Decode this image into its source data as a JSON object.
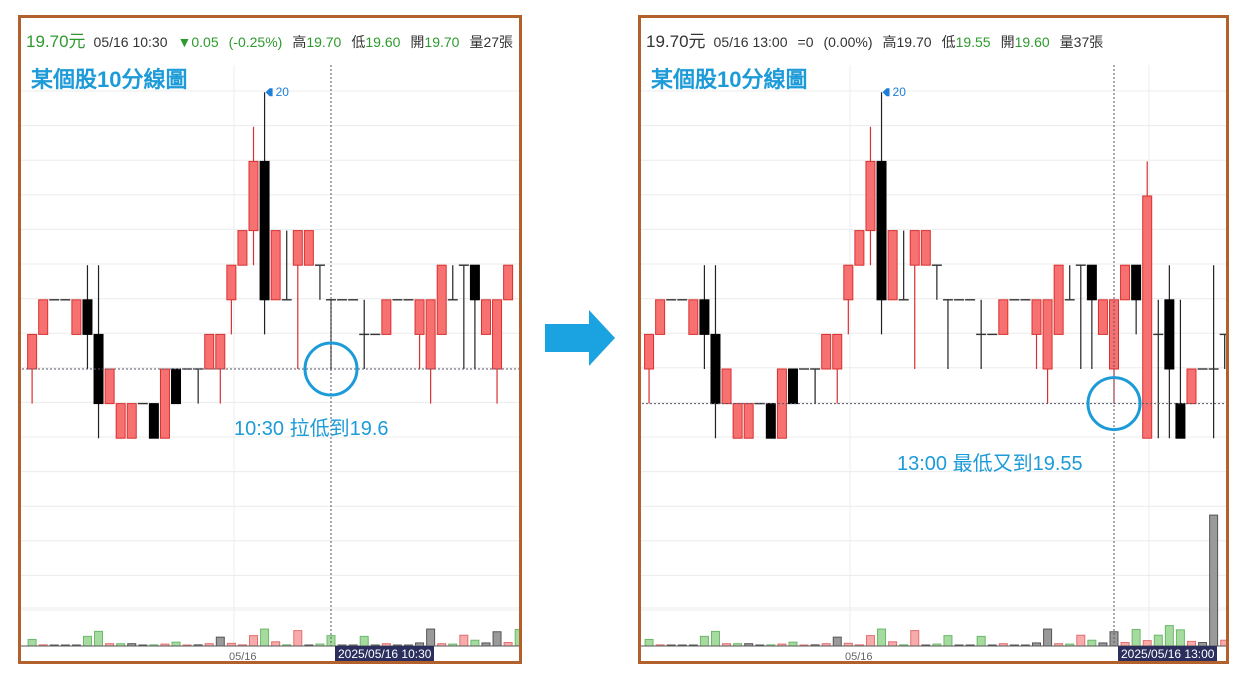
{
  "colors": {
    "up": "#f87171",
    "up_border": "#d93030",
    "down": "#000000",
    "wick": "#222222",
    "vol_green": "#a6dba0",
    "vol_red": "#f9aaaa",
    "vol_gray": "#9a9a9a",
    "accent": "#1d9bd8",
    "frame": "#b2602c",
    "arrow": "#1aa3e0"
  },
  "arrow_icon": "right-arrow",
  "panels": [
    {
      "header": {
        "price": "19.70元",
        "datetime": "05/16 10:30",
        "change": "▼0.05",
        "change_pct": "(-0.25%)",
        "high_label": "高",
        "high": "19.70",
        "low_label": "低",
        "low": "19.60",
        "open_label": "開",
        "open": "19.70",
        "volume": "量27張"
      },
      "title": "某個股10分線圖",
      "annotation": "10:30 拉低到19.6",
      "crosshair_label": "2025/05/16 10:30",
      "x_label": "05/16",
      "peak_label": "20",
      "crosshair_index": 27,
      "crosshair_price": 19.6
    },
    {
      "header": {
        "price": "19.70元",
        "datetime": "05/16 13:00",
        "change": "=0",
        "change_pct": "(0.00%)",
        "high_label": "高",
        "high": "19.70",
        "low_label": "低",
        "low": "19.55",
        "open_label": "開",
        "open": "19.60",
        "volume": "量37張"
      },
      "title": "某個股10分線圖",
      "annotation": "13:00 最低又到19.55",
      "crosshair_label": "2025/05/16 13:00",
      "x_label": "05/16",
      "peak_label": "20",
      "crosshair_index": 42,
      "crosshair_price": 19.55
    }
  ],
  "chart_data": {
    "type": "candlestick",
    "title": "某個股10分線圖",
    "ylim": [
      19.4,
      20.05
    ],
    "grid": true,
    "ohlc": [
      [
        19.6,
        19.65,
        19.55,
        19.65
      ],
      [
        19.65,
        19.7,
        19.65,
        19.7
      ],
      [
        19.7,
        19.7,
        19.7,
        19.7
      ],
      [
        19.7,
        19.7,
        19.7,
        19.7
      ],
      [
        19.65,
        19.7,
        19.65,
        19.7
      ],
      [
        19.7,
        19.75,
        19.6,
        19.65
      ],
      [
        19.65,
        19.75,
        19.5,
        19.55
      ],
      [
        19.55,
        19.6,
        19.55,
        19.6
      ],
      [
        19.5,
        19.55,
        19.5,
        19.55
      ],
      [
        19.5,
        19.55,
        19.5,
        19.55
      ],
      [
        19.55,
        19.55,
        19.55,
        19.55
      ],
      [
        19.55,
        19.55,
        19.5,
        19.5
      ],
      [
        19.5,
        19.6,
        19.5,
        19.6
      ],
      [
        19.6,
        19.6,
        19.55,
        19.55
      ],
      [
        19.6,
        19.6,
        19.6,
        19.6
      ],
      [
        19.6,
        19.6,
        19.55,
        19.6
      ],
      [
        19.6,
        19.65,
        19.6,
        19.65
      ],
      [
        19.6,
        19.65,
        19.55,
        19.65
      ],
      [
        19.7,
        19.75,
        19.65,
        19.75
      ],
      [
        19.75,
        19.8,
        19.75,
        19.8
      ],
      [
        19.8,
        19.95,
        19.75,
        19.9
      ],
      [
        19.9,
        20.0,
        19.65,
        19.7
      ],
      [
        19.7,
        19.8,
        19.7,
        19.8
      ],
      [
        19.7,
        19.8,
        19.7,
        19.7
      ],
      [
        19.75,
        19.8,
        19.6,
        19.8
      ],
      [
        19.75,
        19.8,
        19.75,
        19.8
      ],
      [
        19.75,
        19.75,
        19.7,
        19.75
      ],
      [
        19.7,
        19.7,
        19.6,
        19.7
      ],
      [
        19.7,
        19.7,
        19.7,
        19.7
      ],
      [
        19.7,
        19.7,
        19.7,
        19.7
      ],
      [
        19.65,
        19.7,
        19.6,
        19.65
      ],
      [
        19.65,
        19.65,
        19.65,
        19.65
      ],
      [
        19.65,
        19.7,
        19.65,
        19.7
      ],
      [
        19.7,
        19.7,
        19.7,
        19.7
      ],
      [
        19.7,
        19.7,
        19.7,
        19.7
      ],
      [
        19.65,
        19.7,
        19.6,
        19.7
      ],
      [
        19.6,
        19.7,
        19.55,
        19.7
      ],
      [
        19.65,
        19.75,
        19.65,
        19.75
      ],
      [
        19.7,
        19.75,
        19.7,
        19.7
      ],
      [
        19.75,
        19.75,
        19.6,
        19.75
      ],
      [
        19.75,
        19.75,
        19.6,
        19.7
      ],
      [
        19.65,
        19.7,
        19.65,
        19.7
      ],
      [
        19.6,
        19.7,
        19.55,
        19.7
      ],
      [
        19.7,
        19.75,
        19.7,
        19.75
      ],
      [
        19.75,
        19.75,
        19.65,
        19.7
      ],
      [
        19.5,
        19.9,
        19.5,
        19.85
      ],
      [
        19.65,
        19.7,
        19.5,
        19.65
      ],
      [
        19.7,
        19.75,
        19.5,
        19.6
      ],
      [
        19.55,
        19.7,
        19.5,
        19.5
      ],
      [
        19.55,
        19.6,
        19.55,
        19.6
      ],
      [
        19.6,
        19.6,
        19.6,
        19.6
      ],
      [
        19.6,
        19.75,
        19.5,
        19.6
      ],
      [
        19.65,
        19.65,
        19.6,
        19.65
      ]
    ],
    "volume": [
      17,
      3,
      0,
      0,
      2,
      25,
      38,
      6,
      6,
      6,
      0,
      3,
      5,
      10,
      1,
      3,
      6,
      23,
      7,
      3,
      27,
      44,
      11,
      3,
      40,
      1,
      5,
      27,
      0,
      0,
      25,
      0,
      6,
      0,
      0,
      8,
      44,
      6,
      5,
      28,
      15,
      8,
      37,
      9,
      43,
      14,
      28,
      53,
      42,
      12,
      9,
      340,
      15
    ],
    "volume_color": [
      "g",
      "r",
      "k",
      "k",
      "k",
      "g",
      "g",
      "r",
      "g",
      "k",
      "k",
      "g",
      "r",
      "g",
      "r",
      "k",
      "r",
      "k",
      "r",
      "r",
      "r",
      "g",
      "r",
      "g",
      "r",
      "k",
      "g",
      "g",
      "k",
      "k",
      "g",
      "k",
      "r",
      "k",
      "k",
      "k",
      "k",
      "r",
      "g",
      "r",
      "g",
      "k",
      "k",
      "r",
      "g",
      "r",
      "g",
      "g",
      "g",
      "r",
      "k",
      "k",
      "r"
    ]
  }
}
